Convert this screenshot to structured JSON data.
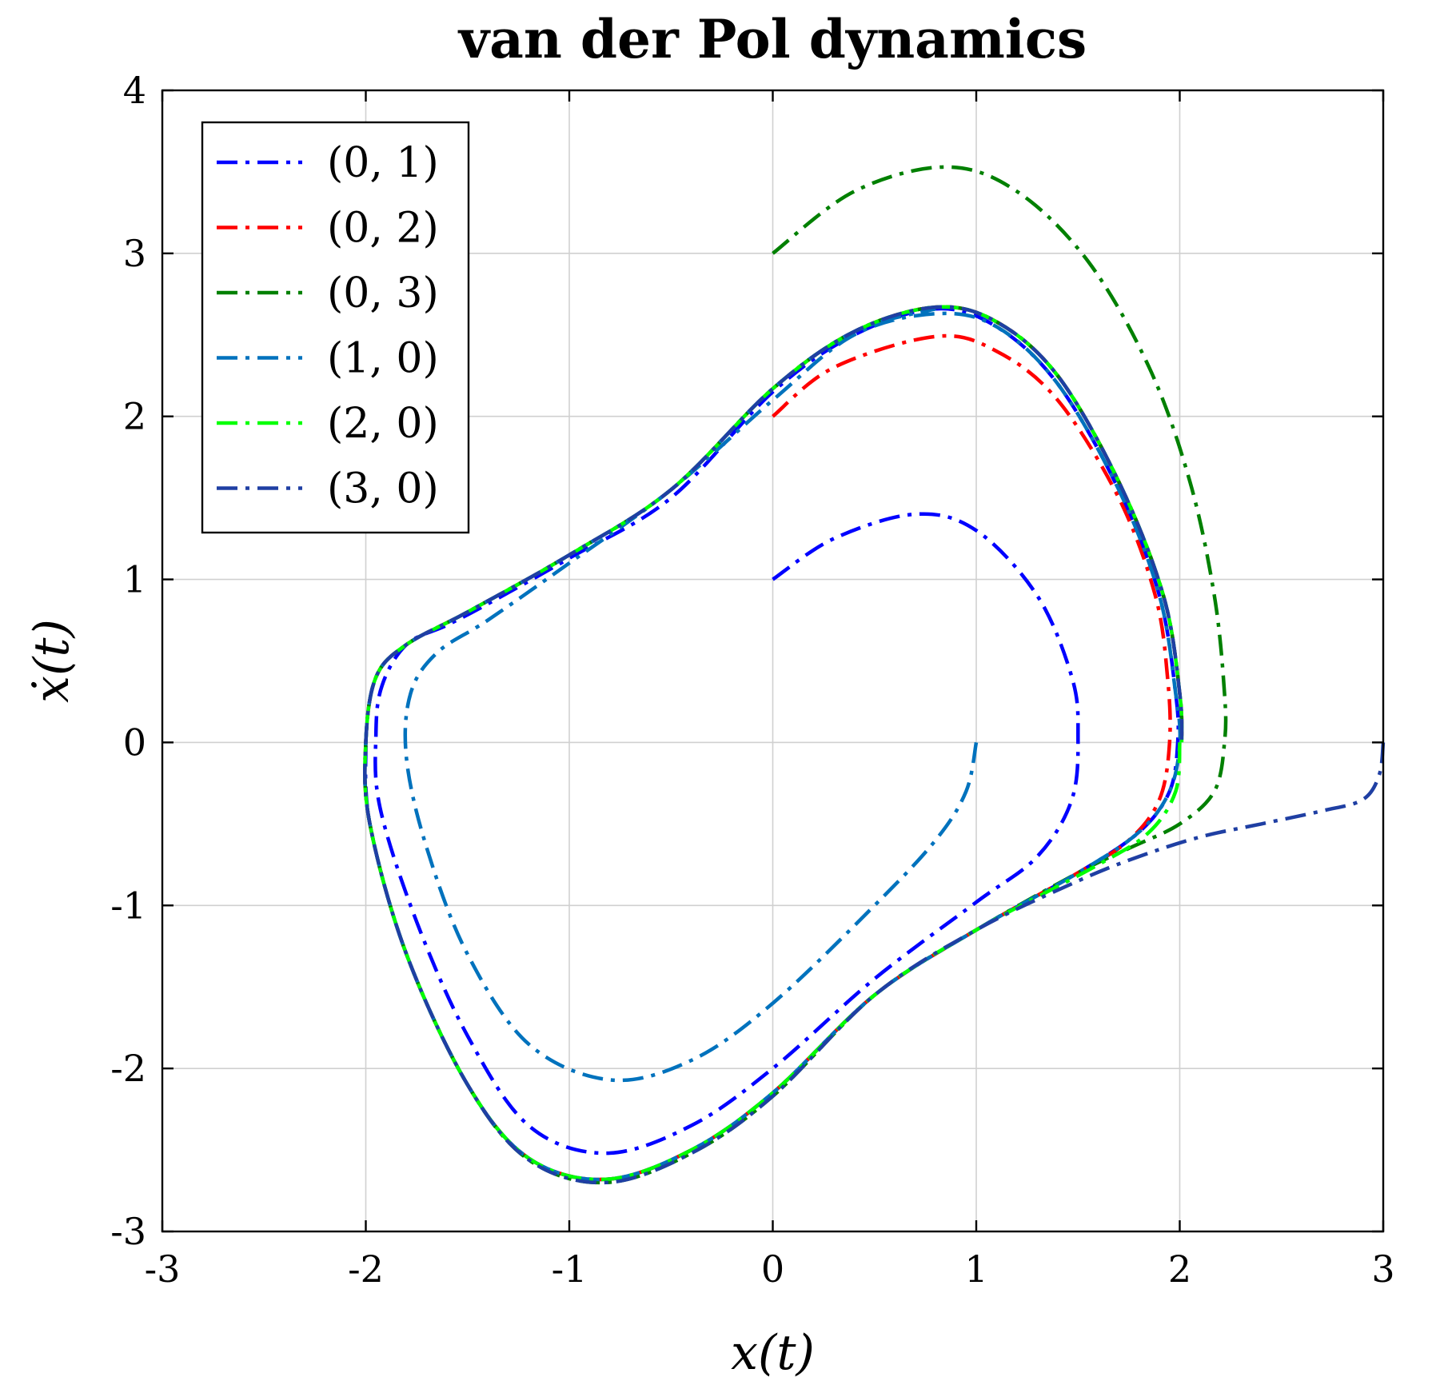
{
  "chart_data": {
    "type": "line",
    "title": "van der Pol dynamics",
    "xlabel": "x(t)",
    "ylabel": "ẋ(t)",
    "xlim": [
      -3,
      3
    ],
    "ylim": [
      -3,
      4
    ],
    "xticks": [
      "-3",
      "-2",
      "-1",
      "0",
      "1",
      "2",
      "3"
    ],
    "yticks": [
      "-3",
      "-2",
      "-1",
      "0",
      "1",
      "2",
      "3",
      "4"
    ],
    "grid": true,
    "legend_position": "top-left",
    "series": [
      {
        "name": "(0, 1)",
        "color": "#0000ff",
        "points": [
          [
            0,
            1
          ],
          [
            0.3,
            1.25
          ],
          [
            0.7,
            1.4
          ],
          [
            1.0,
            1.3
          ],
          [
            1.3,
            0.9
          ],
          [
            1.47,
            0.4
          ],
          [
            1.5,
            0.05
          ],
          [
            1.47,
            -0.35
          ],
          [
            1.3,
            -0.7
          ],
          [
            1.0,
            -0.98
          ],
          [
            0.5,
            -1.45
          ],
          [
            0,
            -2.0
          ],
          [
            -0.4,
            -2.35
          ],
          [
            -0.82,
            -2.52
          ],
          [
            -1.2,
            -2.35
          ],
          [
            -1.5,
            -1.8
          ],
          [
            -1.75,
            -1.1
          ],
          [
            -1.93,
            -0.4
          ],
          [
            -1.95,
            0.05
          ],
          [
            -1.92,
            0.35
          ],
          [
            -1.8,
            0.6
          ],
          [
            -1.6,
            0.72
          ],
          [
            -1.4,
            0.85
          ],
          [
            -1.0,
            1.13
          ],
          [
            -0.5,
            1.5
          ],
          [
            0,
            2.15
          ],
          [
            0.4,
            2.5
          ],
          [
            0.8,
            2.66
          ],
          [
            1.1,
            2.55
          ],
          [
            1.4,
            2.2
          ],
          [
            1.7,
            1.55
          ],
          [
            1.9,
            0.9
          ],
          [
            1.98,
            0.3
          ],
          [
            1.99,
            0
          ],
          [
            1.95,
            -0.3
          ],
          [
            1.8,
            -0.55
          ],
          [
            1.5,
            -0.8
          ],
          [
            1.0,
            -1.15
          ],
          [
            0.5,
            -1.55
          ],
          [
            0,
            -2.15
          ],
          [
            -0.4,
            -2.5
          ],
          [
            -0.82,
            -2.68
          ],
          [
            -1.2,
            -2.55
          ],
          [
            -1.5,
            -2.1
          ],
          [
            -1.8,
            -1.3
          ],
          [
            -1.98,
            -0.5
          ],
          [
            -2.0,
            0
          ]
        ]
      },
      {
        "name": "(0, 2)",
        "color": "#ff0000",
        "points": [
          [
            0,
            2.0
          ],
          [
            0.3,
            2.3
          ],
          [
            0.8,
            2.49
          ],
          [
            1.1,
            2.4
          ],
          [
            1.4,
            2.1
          ],
          [
            1.7,
            1.5
          ],
          [
            1.88,
            0.9
          ],
          [
            1.94,
            0.4
          ],
          [
            1.95,
            0
          ],
          [
            1.9,
            -0.35
          ],
          [
            1.75,
            -0.6
          ],
          [
            1.5,
            -0.8
          ],
          [
            1.0,
            -1.15
          ],
          [
            0.5,
            -1.55
          ],
          [
            0,
            -2.15
          ],
          [
            -0.4,
            -2.5
          ],
          [
            -0.82,
            -2.68
          ],
          [
            -1.2,
            -2.55
          ],
          [
            -1.5,
            -2.1
          ],
          [
            -1.8,
            -1.3
          ],
          [
            -1.98,
            -0.5
          ],
          [
            -2.0,
            0
          ],
          [
            -1.95,
            0.4
          ],
          [
            -1.8,
            0.6
          ],
          [
            -1.5,
            0.8
          ],
          [
            -1.0,
            1.15
          ],
          [
            -0.5,
            1.55
          ],
          [
            0,
            2.17
          ],
          [
            0.4,
            2.52
          ],
          [
            0.8,
            2.67
          ],
          [
            1.1,
            2.58
          ],
          [
            1.4,
            2.25
          ],
          [
            1.7,
            1.6
          ],
          [
            1.92,
            0.9
          ],
          [
            2.0,
            0.3
          ],
          [
            2.01,
            0
          ]
        ]
      },
      {
        "name": "(0, 3)",
        "color": "#008000",
        "points": [
          [
            0,
            3.0
          ],
          [
            0.4,
            3.38
          ],
          [
            0.85,
            3.53
          ],
          [
            1.2,
            3.38
          ],
          [
            1.55,
            2.95
          ],
          [
            1.85,
            2.3
          ],
          [
            2.05,
            1.6
          ],
          [
            2.17,
            0.9
          ],
          [
            2.22,
            0.3
          ],
          [
            2.22,
            0
          ],
          [
            2.17,
            -0.3
          ],
          [
            2.0,
            -0.5
          ],
          [
            1.75,
            -0.65
          ],
          [
            1.5,
            -0.8
          ],
          [
            1.0,
            -1.15
          ],
          [
            0.5,
            -1.55
          ],
          [
            0,
            -2.17
          ],
          [
            -0.4,
            -2.52
          ],
          [
            -0.82,
            -2.7
          ],
          [
            -1.2,
            -2.56
          ],
          [
            -1.5,
            -2.1
          ],
          [
            -1.8,
            -1.3
          ],
          [
            -1.98,
            -0.5
          ],
          [
            -2.0,
            0
          ],
          [
            -1.95,
            0.4
          ],
          [
            -1.8,
            0.6
          ],
          [
            -1.5,
            0.8
          ],
          [
            -1.0,
            1.15
          ],
          [
            -0.5,
            1.55
          ],
          [
            0,
            2.17
          ],
          [
            0.4,
            2.52
          ],
          [
            0.8,
            2.67
          ],
          [
            1.1,
            2.58
          ],
          [
            1.4,
            2.25
          ],
          [
            1.7,
            1.6
          ],
          [
            1.92,
            0.9
          ],
          [
            2.0,
            0.3
          ],
          [
            2.01,
            0
          ]
        ]
      },
      {
        "name": "(1, 0)",
        "color": "#0072bd",
        "points": [
          [
            1.0,
            0
          ],
          [
            0.95,
            -0.3
          ],
          [
            0.8,
            -0.6
          ],
          [
            0.5,
            -1.0
          ],
          [
            0,
            -1.6
          ],
          [
            -0.4,
            -1.95
          ],
          [
            -0.8,
            -2.07
          ],
          [
            -1.2,
            -1.85
          ],
          [
            -1.5,
            -1.3
          ],
          [
            -1.7,
            -0.65
          ],
          [
            -1.8,
            -0.1
          ],
          [
            -1.78,
            0.3
          ],
          [
            -1.65,
            0.55
          ],
          [
            -1.4,
            0.75
          ],
          [
            -1.0,
            1.1
          ],
          [
            -0.5,
            1.55
          ],
          [
            0,
            2.1
          ],
          [
            0.4,
            2.5
          ],
          [
            0.8,
            2.63
          ],
          [
            1.1,
            2.55
          ],
          [
            1.4,
            2.2
          ],
          [
            1.7,
            1.55
          ],
          [
            1.9,
            0.9
          ],
          [
            1.98,
            0.3
          ],
          [
            2.0,
            0
          ],
          [
            1.95,
            -0.3
          ],
          [
            1.8,
            -0.55
          ],
          [
            1.5,
            -0.8
          ],
          [
            1.0,
            -1.15
          ],
          [
            0.5,
            -1.55
          ],
          [
            0,
            -2.15
          ],
          [
            -0.4,
            -2.5
          ],
          [
            -0.82,
            -2.68
          ],
          [
            -1.2,
            -2.55
          ],
          [
            -1.5,
            -2.1
          ],
          [
            -1.8,
            -1.3
          ],
          [
            -1.98,
            -0.5
          ],
          [
            -2.0,
            0
          ],
          [
            -1.95,
            0.4
          ],
          [
            -1.8,
            0.6
          ],
          [
            -1.5,
            0.8
          ],
          [
            -1.0,
            1.15
          ],
          [
            -0.5,
            1.55
          ],
          [
            0,
            2.17
          ],
          [
            0.4,
            2.52
          ],
          [
            0.8,
            2.66
          ]
        ]
      },
      {
        "name": "(2, 0)",
        "color": "#00ff00",
        "points": [
          [
            2.0,
            0
          ],
          [
            1.98,
            -0.3
          ],
          [
            1.85,
            -0.55
          ],
          [
            1.6,
            -0.75
          ],
          [
            1.0,
            -1.15
          ],
          [
            0.5,
            -1.55
          ],
          [
            0,
            -2.15
          ],
          [
            -0.4,
            -2.5
          ],
          [
            -0.82,
            -2.68
          ],
          [
            -1.2,
            -2.55
          ],
          [
            -1.5,
            -2.1
          ],
          [
            -1.8,
            -1.3
          ],
          [
            -1.98,
            -0.5
          ],
          [
            -2.0,
            0
          ],
          [
            -1.95,
            0.4
          ],
          [
            -1.8,
            0.6
          ],
          [
            -1.5,
            0.8
          ],
          [
            -1.0,
            1.15
          ],
          [
            -0.5,
            1.55
          ],
          [
            0,
            2.17
          ],
          [
            0.4,
            2.52
          ],
          [
            0.8,
            2.67
          ],
          [
            1.1,
            2.58
          ],
          [
            1.4,
            2.25
          ],
          [
            1.7,
            1.6
          ],
          [
            1.92,
            0.9
          ],
          [
            2.0,
            0.3
          ],
          [
            2.01,
            0
          ]
        ]
      },
      {
        "name": "(3, 0)",
        "color": "#1f3fa3",
        "points": [
          [
            3.0,
            0
          ],
          [
            2.98,
            -0.2
          ],
          [
            2.9,
            -0.35
          ],
          [
            2.7,
            -0.42
          ],
          [
            2.4,
            -0.5
          ],
          [
            2.1,
            -0.58
          ],
          [
            1.8,
            -0.7
          ],
          [
            1.5,
            -0.85
          ],
          [
            1.0,
            -1.15
          ],
          [
            0.5,
            -1.55
          ],
          [
            0,
            -2.17
          ],
          [
            -0.4,
            -2.52
          ],
          [
            -0.82,
            -2.7
          ],
          [
            -1.2,
            -2.56
          ],
          [
            -1.5,
            -2.1
          ],
          [
            -1.8,
            -1.3
          ],
          [
            -1.98,
            -0.5
          ],
          [
            -2.0,
            0
          ],
          [
            -1.95,
            0.4
          ],
          [
            -1.8,
            0.6
          ],
          [
            -1.5,
            0.8
          ],
          [
            -1.0,
            1.15
          ],
          [
            -0.5,
            1.55
          ],
          [
            0,
            2.17
          ],
          [
            0.4,
            2.52
          ],
          [
            0.8,
            2.67
          ],
          [
            1.1,
            2.58
          ],
          [
            1.4,
            2.25
          ],
          [
            1.7,
            1.6
          ],
          [
            1.92,
            0.9
          ],
          [
            2.0,
            0.3
          ],
          [
            2.01,
            0
          ]
        ]
      }
    ]
  }
}
